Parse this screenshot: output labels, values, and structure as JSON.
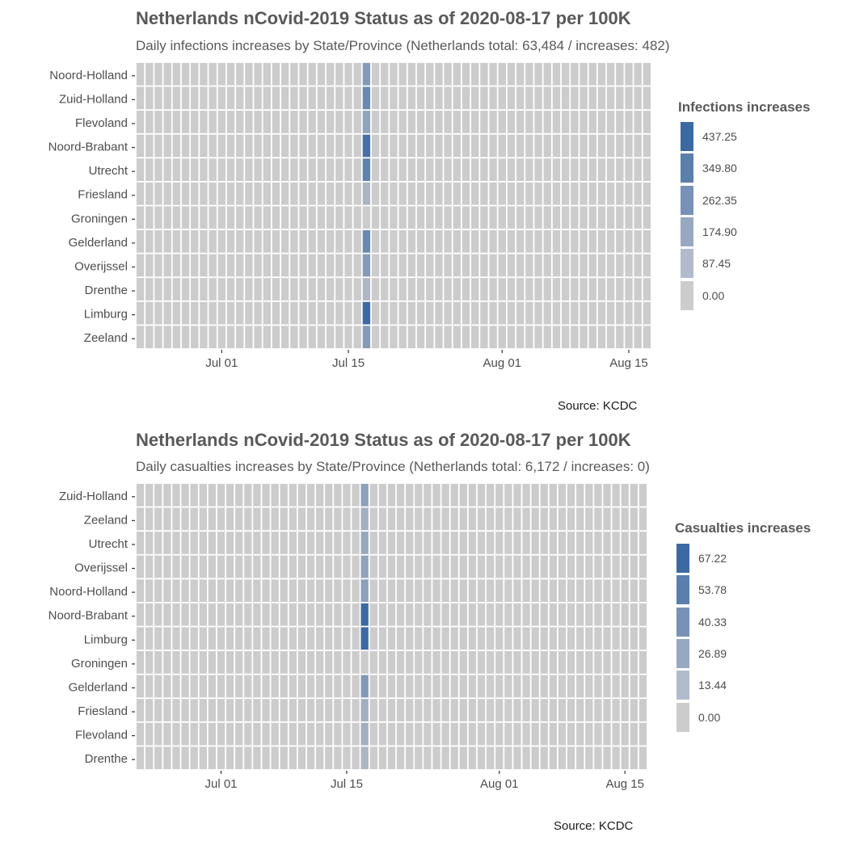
{
  "chart_data": [
    {
      "type": "heatmap",
      "title": "Netherlands nCovid-2019 Status as of 2020-08-17 per 100K",
      "subtitle": "Daily infections increases by State/Province (Netherlands total: 63,484 / increases: 482)",
      "caption": "Source: KCDC",
      "xlabel": "",
      "ylabel": "",
      "x_range": [
        "2020-06-22",
        "2020-08-17"
      ],
      "x_ticks": [
        {
          "date": "2020-07-01",
          "label": "Jul 01"
        },
        {
          "date": "2020-07-15",
          "label": "Jul 15"
        },
        {
          "date": "2020-08-01",
          "label": "Aug 01"
        },
        {
          "date": "2020-08-15",
          "label": "Aug 15"
        }
      ],
      "provinces": [
        "Noord-Holland",
        "Zuid-Holland",
        "Flevoland",
        "Noord-Brabant",
        "Utrecht",
        "Friesland",
        "Groningen",
        "Gelderland",
        "Overijssel",
        "Drenthe",
        "Limburg",
        "Zeeland"
      ],
      "highlight_date": "2020-07-17",
      "values_on_highlight_date": [
        220,
        300,
        180,
        400,
        330,
        100,
        0,
        300,
        220,
        90,
        440,
        220
      ],
      "default_value": 0,
      "legend": {
        "title": "Infections increases",
        "position": "right",
        "breaks": [
          "437.25",
          "349.80",
          "262.35",
          "174.90",
          "87.45",
          "0.00"
        ],
        "colors": [
          "#3b6aa3",
          "#5b7fad",
          "#7891b7",
          "#97a8c3",
          "#b1bbcc",
          "#cccccc"
        ],
        "max": 437.25
      },
      "grid": false
    },
    {
      "type": "heatmap",
      "title": "Netherlands nCovid-2019 Status as of 2020-08-17 per 100K",
      "subtitle": "Daily casualties increases by State/Province (Netherlands total: 6,172 / increases: 0)",
      "caption": "Source: KCDC",
      "xlabel": "",
      "ylabel": "",
      "x_range": [
        "2020-06-22",
        "2020-08-17"
      ],
      "x_ticks": [
        {
          "date": "2020-07-01",
          "label": "Jul 01"
        },
        {
          "date": "2020-07-15",
          "label": "Jul 15"
        },
        {
          "date": "2020-08-01",
          "label": "Aug 01"
        },
        {
          "date": "2020-08-15",
          "label": "Aug 15"
        }
      ],
      "provinces": [
        "Zuid-Holland",
        "Zeeland",
        "Utrecht",
        "Overijssel",
        "Noord-Holland",
        "Noord-Brabant",
        "Limburg",
        "Groningen",
        "Gelderland",
        "Friesland",
        "Flevoland",
        "Drenthe"
      ],
      "highlight_date": "2020-07-17",
      "values_on_highlight_date": [
        30,
        20,
        25,
        28,
        30,
        67,
        67,
        0,
        35,
        20,
        20,
        15
      ],
      "default_value": 0,
      "legend": {
        "title": "Casualties increases",
        "position": "right",
        "breaks": [
          "67.22",
          "53.78",
          "40.33",
          "26.89",
          "13.44",
          "0.00"
        ],
        "colors": [
          "#3b6aa3",
          "#5b7fad",
          "#7891b7",
          "#97a8c3",
          "#b1bbcc",
          "#cccccc"
        ],
        "max": 67.22
      },
      "grid": false
    }
  ]
}
